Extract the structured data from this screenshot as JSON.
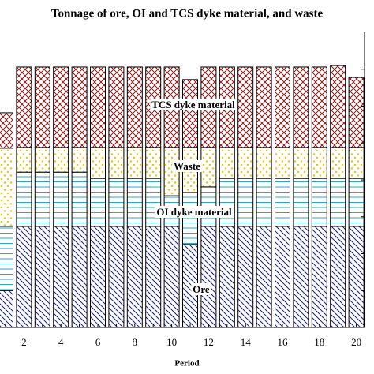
{
  "chart_data": {
    "type": "stacked_bar",
    "title": "Tonnage of ore, OI and TCS dyke material, and waste",
    "x_label": "Period",
    "categories": [
      null,
      "2",
      null,
      "4",
      null,
      "6",
      null,
      "8",
      null,
      "10",
      null,
      "12",
      null,
      "14",
      null,
      "16",
      null,
      "18",
      null,
      "20"
    ],
    "series": [
      {
        "name": "Ore",
        "color": "#1a237e",
        "values": [
          1.0,
          2.74,
          2.74,
          2.74,
          2.74,
          2.74,
          2.74,
          2.74,
          2.74,
          2.74,
          2.25,
          2.74,
          2.74,
          2.74,
          2.74,
          2.74,
          2.74,
          2.74,
          2.74,
          2.74
        ]
      },
      {
        "name": "OI dyke material",
        "color": "#29a8c4",
        "values": [
          1.74,
          1.47,
          1.47,
          1.47,
          1.47,
          1.3,
          1.3,
          1.3,
          1.3,
          0.83,
          1.41,
          1.07,
          1.3,
          1.3,
          1.3,
          1.3,
          1.3,
          1.3,
          1.3,
          1.3
        ]
      },
      {
        "name": "Waste",
        "color": "#f2c200",
        "values": [
          2.12,
          0.67,
          0.67,
          0.67,
          0.67,
          0.84,
          0.84,
          0.84,
          0.84,
          1.31,
          1.22,
          1.07,
          0.84,
          0.84,
          0.84,
          0.84,
          0.84,
          0.84,
          0.84,
          0.84
        ]
      },
      {
        "name": "TCS dyke material",
        "color": "#8b1a1a",
        "values": [
          0.96,
          2.18,
          2.18,
          2.18,
          2.18,
          2.18,
          2.18,
          2.18,
          2.18,
          2.18,
          1.84,
          2.18,
          2.18,
          2.18,
          2.18,
          2.18,
          2.18,
          2.18,
          2.22,
          1.9
        ]
      }
    ],
    "ylim": [
      0,
      8
    ],
    "yticks": [
      1,
      2,
      3,
      4,
      5,
      6,
      7
    ]
  }
}
